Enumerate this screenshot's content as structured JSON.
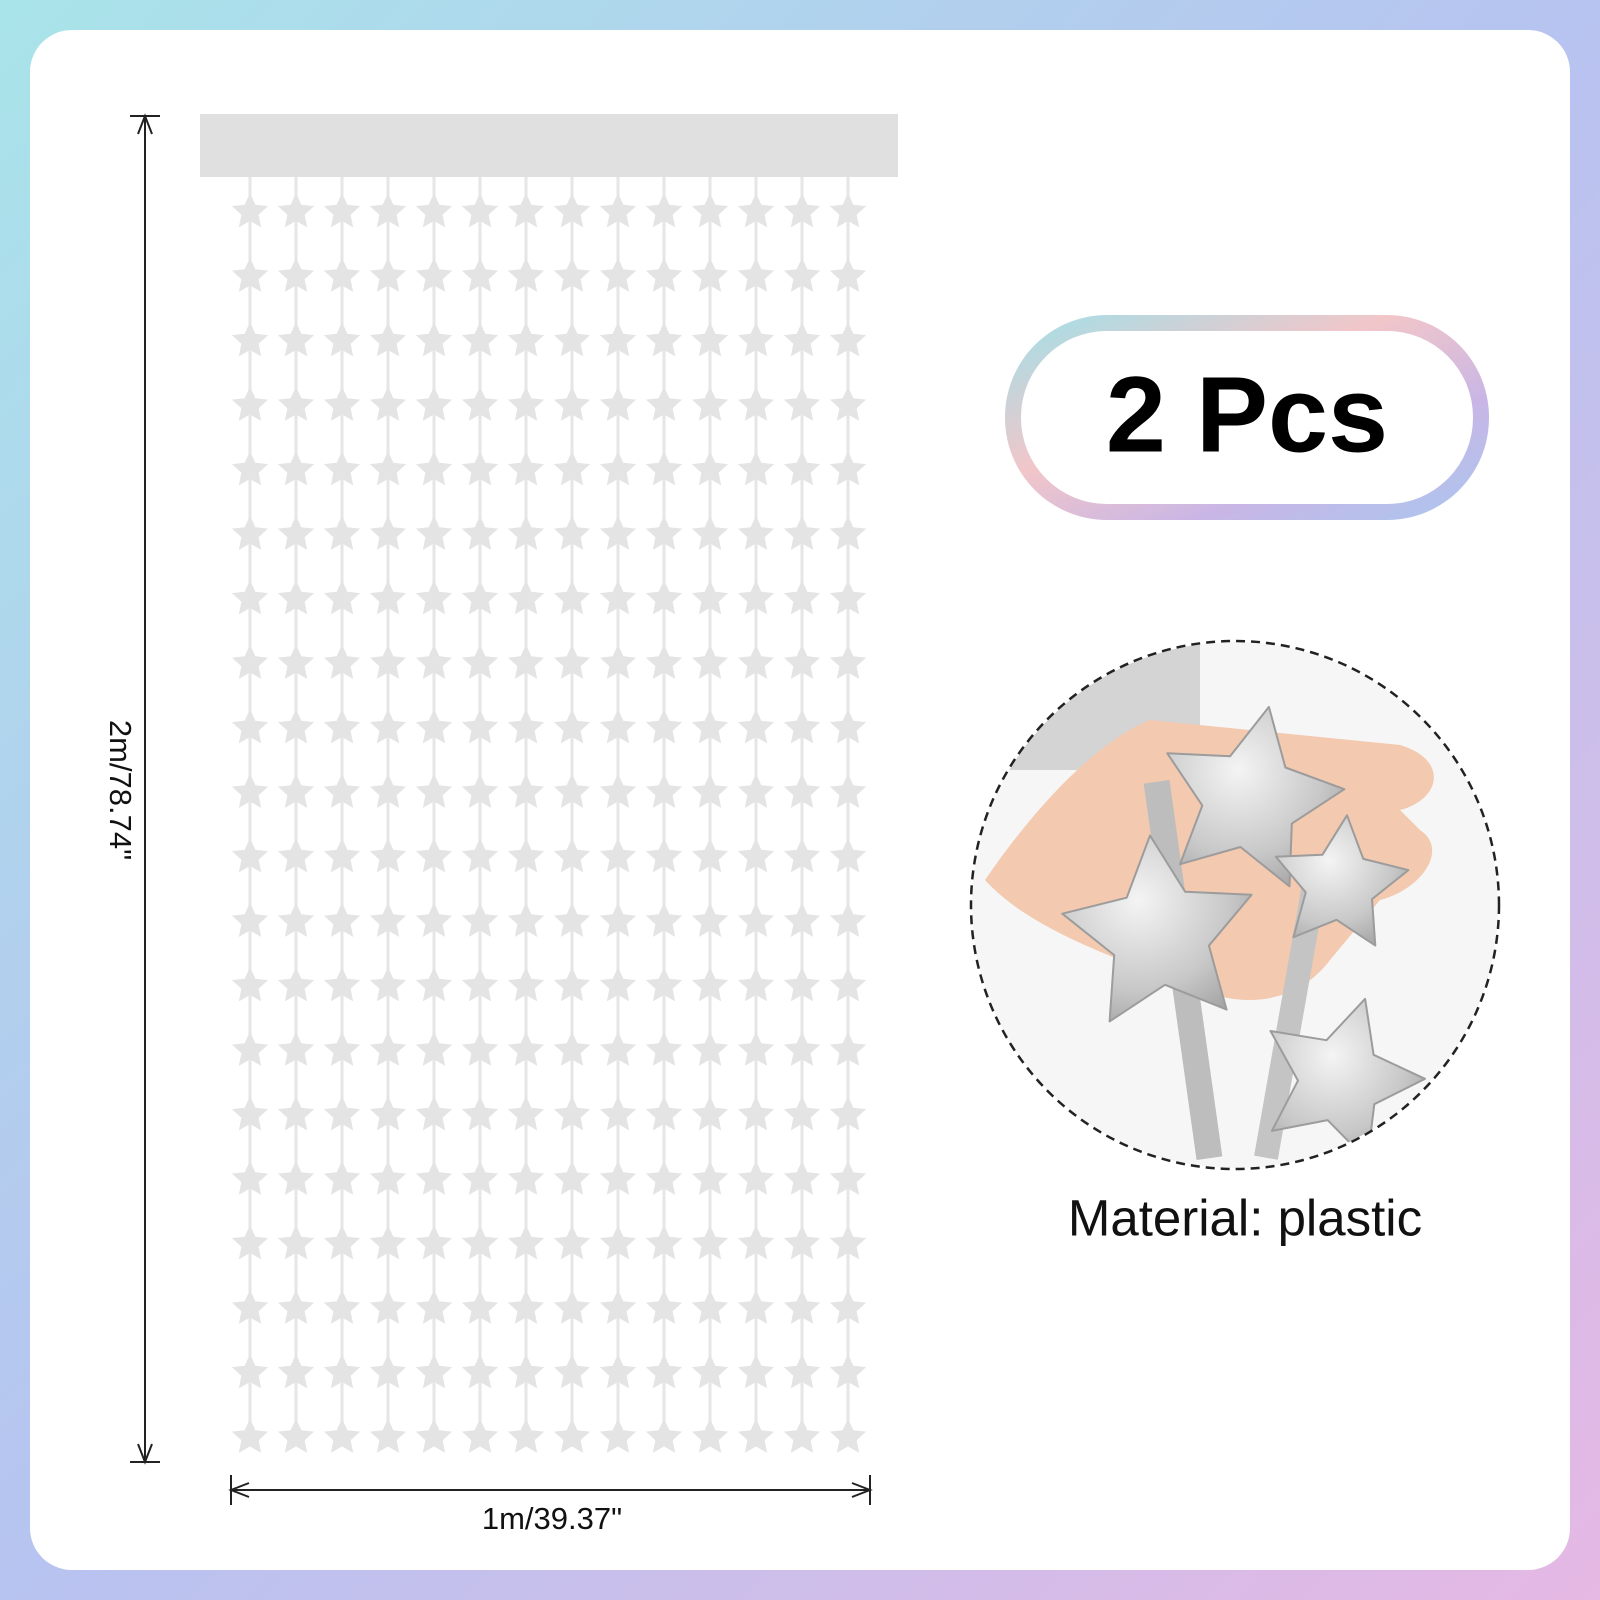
{
  "dimensions": {
    "height": "2m/78.74\"",
    "width": "1m/39.37\""
  },
  "badge": "2 Pcs",
  "material": "Material: plastic"
}
